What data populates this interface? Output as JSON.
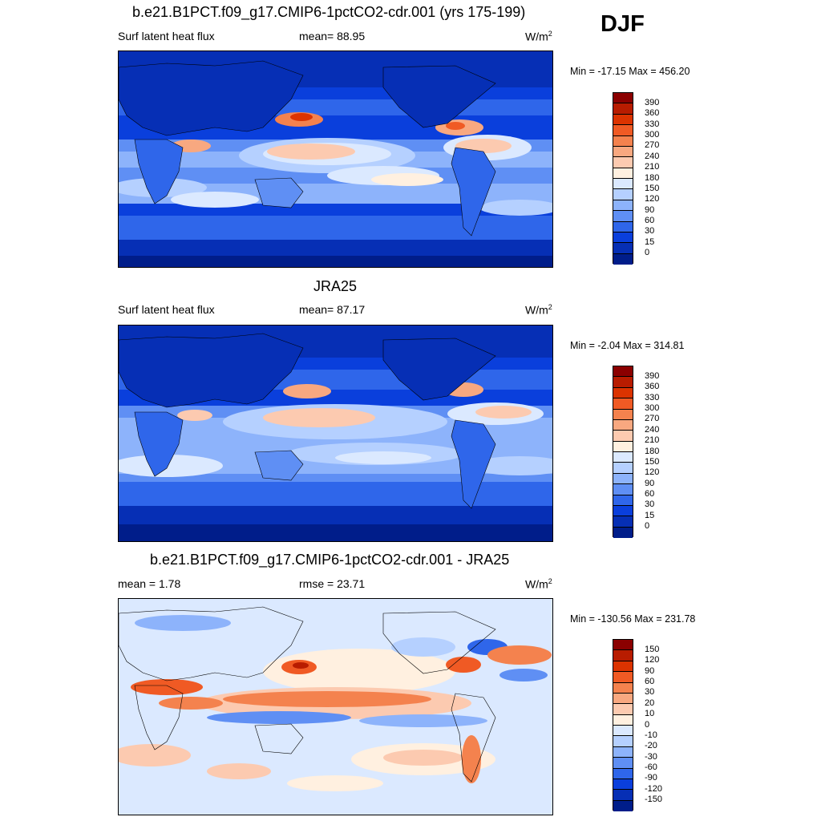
{
  "season": "DJF",
  "panels": [
    {
      "title": "b.e21.B1PCT.f09_g17.CMIP6-1pctCO2-cdr.001 (yrs 175-199)",
      "left": "Surf latent heat flux",
      "center": "mean=  88.95",
      "units": "W/m",
      "units_sup": "2",
      "minmax": "Min = -17.15 Max = 456.20",
      "field": "abs"
    },
    {
      "title": "JRA25",
      "left": "Surf latent heat flux",
      "center": "mean=  87.17",
      "units": "W/m",
      "units_sup": "2",
      "minmax": "Min =  -2.04 Max = 314.81",
      "field": "abs"
    },
    {
      "title": "b.e21.B1PCT.f09_g17.CMIP6-1pctCO2-cdr.001 - JRA25",
      "left": "mean =   1.78",
      "center": "rmse =  23.71",
      "units": "W/m",
      "units_sup": "2",
      "minmax": "Min = -130.56 Max = 231.78",
      "field": "diff"
    }
  ],
  "colorbar_abs": {
    "labels": [
      "390",
      "360",
      "330",
      "300",
      "270",
      "240",
      "210",
      "180",
      "150",
      "120",
      "90",
      "60",
      "30",
      "15",
      "0"
    ],
    "colors": [
      "#8b0000",
      "#b81c00",
      "#dc3300",
      "#f05a24",
      "#f4824e",
      "#f8a880",
      "#fccab0",
      "#fff0e0",
      "#dbe9ff",
      "#b5d0ff",
      "#8db3fb",
      "#5f8ff4",
      "#2f66ea",
      "#0a3fdc",
      "#062fb5",
      "#001d8a"
    ]
  },
  "colorbar_diff": {
    "labels": [
      "150",
      "120",
      "90",
      "60",
      "30",
      "20",
      "10",
      "0",
      "-10",
      "-20",
      "-30",
      "-60",
      "-90",
      "-120",
      "-150"
    ],
    "colors": [
      "#8b0000",
      "#b81c00",
      "#dc3300",
      "#f05a24",
      "#f4824e",
      "#f8a880",
      "#fccab0",
      "#fff0e0",
      "#dbe9ff",
      "#b5d0ff",
      "#8db3fb",
      "#5f8ff4",
      "#2f66ea",
      "#0a3fdc",
      "#062fb5",
      "#001d8a"
    ]
  }
}
